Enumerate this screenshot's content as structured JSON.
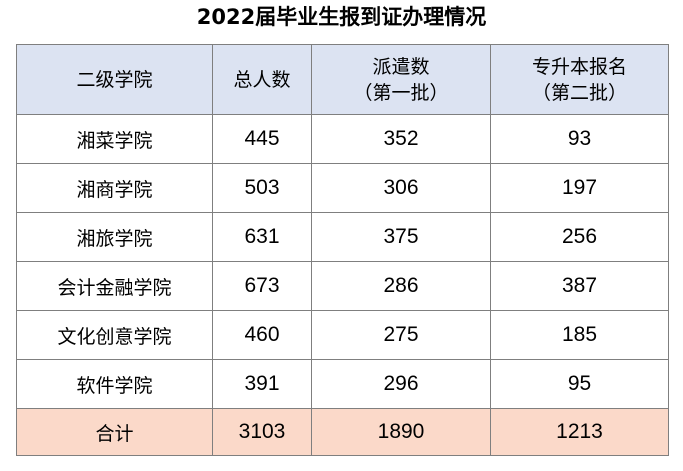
{
  "title": "2022届毕业生报到证办理情况",
  "headers": {
    "college": "二级学院",
    "total": "总人数",
    "dispatch_line1": "派遣数",
    "dispatch_line2": "（第一批）",
    "upgrade_line1": "专升本报名",
    "upgrade_line2": "（第二批）"
  },
  "rows": [
    {
      "college": "湘菜学院",
      "total": "445",
      "dispatch": "352",
      "upgrade": "93"
    },
    {
      "college": "湘商学院",
      "total": "503",
      "dispatch": "306",
      "upgrade": "197"
    },
    {
      "college": "湘旅学院",
      "total": "631",
      "dispatch": "375",
      "upgrade": "256"
    },
    {
      "college": "会计金融学院",
      "total": "673",
      "dispatch": "286",
      "upgrade": "387"
    },
    {
      "college": "文化创意学院",
      "total": "460",
      "dispatch": "275",
      "upgrade": "185"
    },
    {
      "college": "软件学院",
      "total": "391",
      "dispatch": "296",
      "upgrade": "95"
    }
  ],
  "footer": {
    "label": "合计",
    "total": "3103",
    "dispatch": "1890",
    "upgrade": "1213"
  },
  "colors": {
    "header_bg": "#dce3f2",
    "footer_bg": "#fbd9c9",
    "border": "#7f7f7f"
  }
}
